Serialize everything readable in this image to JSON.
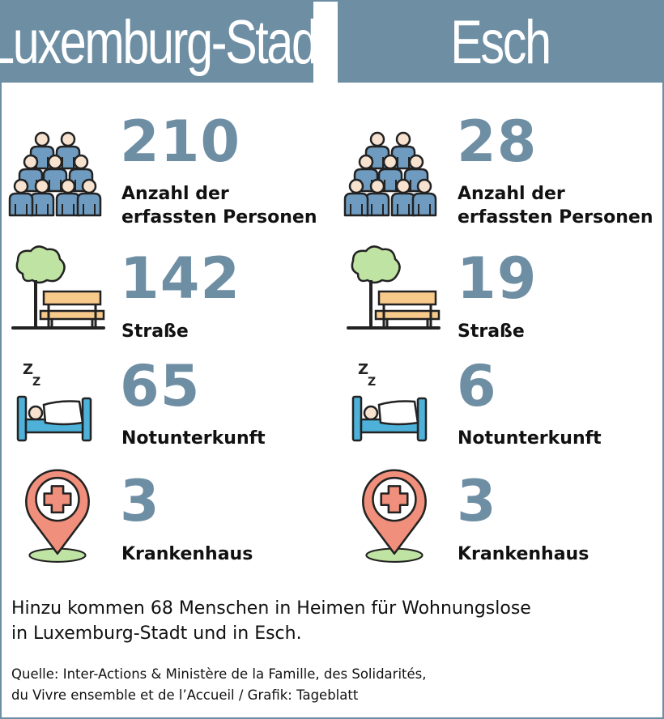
{
  "columns": [
    {
      "title": "Luxemburg-Stadt",
      "stats": [
        {
          "icon": "people-group-icon",
          "value": "210",
          "label_line1": "Anzahl der",
          "label_line2": "erfassten Personen"
        },
        {
          "icon": "park-bench-icon",
          "value": "142",
          "label_line1": "Straße"
        },
        {
          "icon": "sleeping-bed-icon",
          "value": "65",
          "label_line1": "Notunterkunft"
        },
        {
          "icon": "hospital-pin-icon",
          "value": "3",
          "label_line1": "Krankenhaus"
        }
      ]
    },
    {
      "title": "Esch",
      "stats": [
        {
          "icon": "people-group-icon",
          "value": "28",
          "label_line1": "Anzahl der",
          "label_line2": "erfassten Personen"
        },
        {
          "icon": "park-bench-icon",
          "value": "19",
          "label_line1": "Straße"
        },
        {
          "icon": "sleeping-bed-icon",
          "value": "6",
          "label_line1": "Notunterkunft"
        },
        {
          "icon": "hospital-pin-icon",
          "value": "3",
          "label_line1": "Krankenhaus"
        }
      ]
    }
  ],
  "note": {
    "line1": "Hinzu kommen 68 Menschen in Heimen für Wohnungslose",
    "line2": "in Luxemburg-Stadt und in Esch."
  },
  "source": {
    "line1": "Quelle: Inter-Actions & Ministère de la Famille, des Solidarités,",
    "line2": "du Vivre ensemble et de l’Accueil / Grafik: Tageblatt"
  },
  "colors": {
    "accent": "#6e8ea4",
    "people_fill": "#6e9bbf",
    "face": "#f7e1cf",
    "tree": "#bfe3a3",
    "bench": "#f7c98b",
    "blanket": "#4db1d9",
    "pin": "#f08f7b"
  }
}
